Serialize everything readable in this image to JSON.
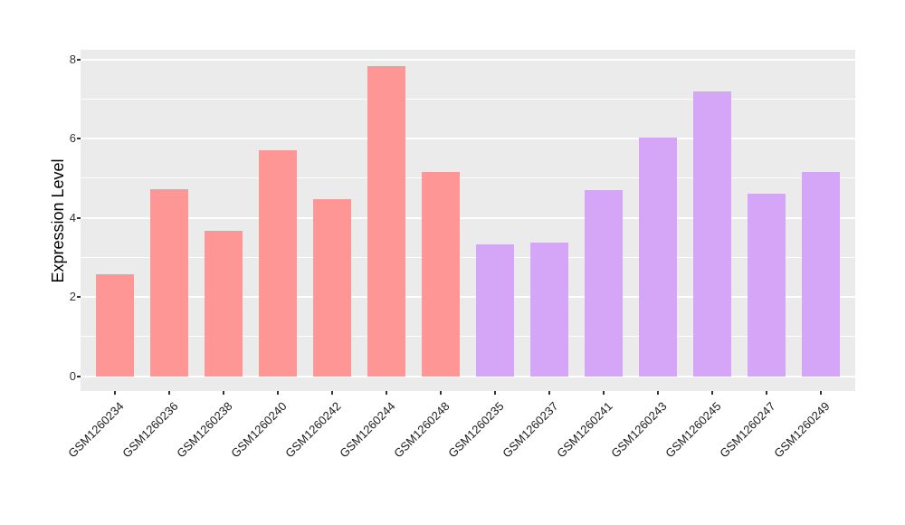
{
  "chart_data": {
    "type": "bar",
    "title": "",
    "xlabel": "",
    "ylabel": "Expression Level",
    "ylim": [
      0,
      8
    ],
    "yticks": [
      0,
      2,
      4,
      6,
      8
    ],
    "yticks_minor": [
      1,
      3,
      5,
      7
    ],
    "grid": true,
    "legend_position": "none",
    "categories": [
      "GSM1260234",
      "GSM1260236",
      "GSM1260238",
      "GSM1260240",
      "GSM1260242",
      "GSM1260244",
      "GSM1260248",
      "GSM1260235",
      "GSM1260237",
      "GSM1260241",
      "GSM1260243",
      "GSM1260245",
      "GSM1260247",
      "GSM1260249"
    ],
    "values": [
      2.58,
      4.72,
      3.67,
      5.7,
      4.48,
      7.83,
      5.15,
      3.33,
      3.37,
      4.7,
      6.02,
      7.19,
      4.6,
      5.17
    ],
    "groups": [
      "group1",
      "group1",
      "group1",
      "group1",
      "group1",
      "group1",
      "group1",
      "group2",
      "group2",
      "group2",
      "group2",
      "group2",
      "group2",
      "group2"
    ],
    "colors": {
      "group1": "#FD9694",
      "group2": "#D5A5F7",
      "panel_background": "#EBEBEB",
      "gridline": "#FFFFFF",
      "axis_text": "#333333",
      "figure_background": "#FFFFFF"
    }
  }
}
